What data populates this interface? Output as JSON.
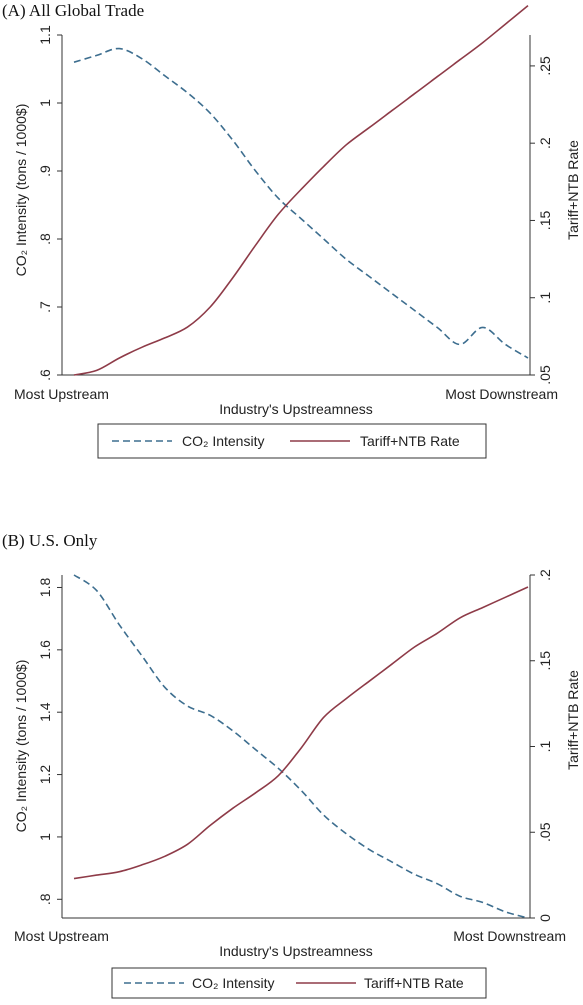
{
  "colors": {
    "co2": "#3d6e8f",
    "tariff": "#8e3b48"
  },
  "chart_data": [
    {
      "type": "line",
      "title": "(A) All Global Trade",
      "xlabel": "Industry's Upstreamness",
      "x_ticks": [
        "Most Upstream",
        "Most Downstream"
      ],
      "ylabel_left": "CO₂ Intensity (tons / 1000$)",
      "ylabel_right": "Tariff+NTB Rate",
      "ylim_left": [
        0.6,
        1.1
      ],
      "ylim_right": [
        0.05,
        0.27
      ],
      "yticks_left": [
        "1.1",
        "1",
        ".9",
        ".8",
        ".7",
        ".6"
      ],
      "yticks_left_values": [
        1.1,
        1.0,
        0.9,
        0.8,
        0.7,
        0.6
      ],
      "yticks_right": [
        ".25",
        ".2",
        ".15",
        ".1",
        ".05"
      ],
      "yticks_right_values": [
        0.25,
        0.2,
        0.15,
        0.1,
        0.05
      ],
      "x": [
        0,
        0.05,
        0.1,
        0.15,
        0.2,
        0.25,
        0.3,
        0.35,
        0.4,
        0.45,
        0.5,
        0.55,
        0.6,
        0.65,
        0.7,
        0.75,
        0.8,
        0.85,
        0.9,
        0.95,
        1.0
      ],
      "series": [
        {
          "name": "CO₂ Intensity",
          "axis": "left",
          "values": [
            1.06,
            1.07,
            1.08,
            1.065,
            1.04,
            1.015,
            0.985,
            0.945,
            0.9,
            0.86,
            0.83,
            0.8,
            0.77,
            0.745,
            0.72,
            0.695,
            0.67,
            0.645,
            0.67,
            0.645,
            0.625
          ]
        },
        {
          "name": "Tariff+NTB Rate",
          "axis": "right",
          "values": [
            0.05,
            0.053,
            0.061,
            0.068,
            0.074,
            0.081,
            0.094,
            0.113,
            0.134,
            0.154,
            0.17,
            0.185,
            0.199,
            0.21,
            0.221,
            0.232,
            0.243,
            0.254,
            0.265,
            0.277,
            0.289
          ]
        }
      ],
      "legend": [
        "CO₂ Intensity",
        "Tariff+NTB Rate"
      ],
      "legend_placement": "bottom",
      "grid": false
    },
    {
      "type": "line",
      "title": "(B) U.S. Only",
      "xlabel": "Industry's Upstreamness",
      "x_ticks": [
        "Most Upstream",
        "Most Downstream"
      ],
      "ylabel_left": "CO₂ Intensity (tons / 1000$)",
      "ylabel_right": "Tariff+NTB Rate",
      "ylim_left": [
        0.74,
        1.84
      ],
      "ylim_right": [
        0.0,
        0.2
      ],
      "yticks_left": [
        "1.8",
        "1.6",
        "1.4",
        "1.2",
        "1",
        ".8"
      ],
      "yticks_left_values": [
        1.8,
        1.6,
        1.4,
        1.2,
        1.0,
        0.8
      ],
      "yticks_right": [
        ".2",
        ".15",
        ".1",
        ".05",
        "0"
      ],
      "yticks_right_values": [
        0.2,
        0.15,
        0.1,
        0.05,
        0.0
      ],
      "x": [
        0,
        0.05,
        0.1,
        0.15,
        0.2,
        0.25,
        0.3,
        0.35,
        0.4,
        0.45,
        0.5,
        0.55,
        0.6,
        0.65,
        0.7,
        0.75,
        0.8,
        0.85,
        0.9,
        0.95,
        1.0
      ],
      "series": [
        {
          "name": "CO₂ Intensity",
          "axis": "left",
          "values": [
            1.84,
            1.79,
            1.68,
            1.58,
            1.48,
            1.42,
            1.39,
            1.34,
            1.28,
            1.22,
            1.15,
            1.07,
            1.01,
            0.96,
            0.92,
            0.88,
            0.85,
            0.81,
            0.79,
            0.76,
            0.74
          ]
        },
        {
          "name": "Tariff+NTB Rate",
          "axis": "right",
          "values": [
            0.023,
            0.025,
            0.027,
            0.031,
            0.036,
            0.043,
            0.054,
            0.064,
            0.073,
            0.083,
            0.099,
            0.117,
            0.128,
            0.138,
            0.148,
            0.158,
            0.166,
            0.175,
            0.181,
            0.187,
            0.193
          ]
        }
      ],
      "legend": [
        "CO₂ Intensity",
        "Tariff+NTB Rate"
      ],
      "legend_placement": "bottom",
      "grid": false
    }
  ]
}
